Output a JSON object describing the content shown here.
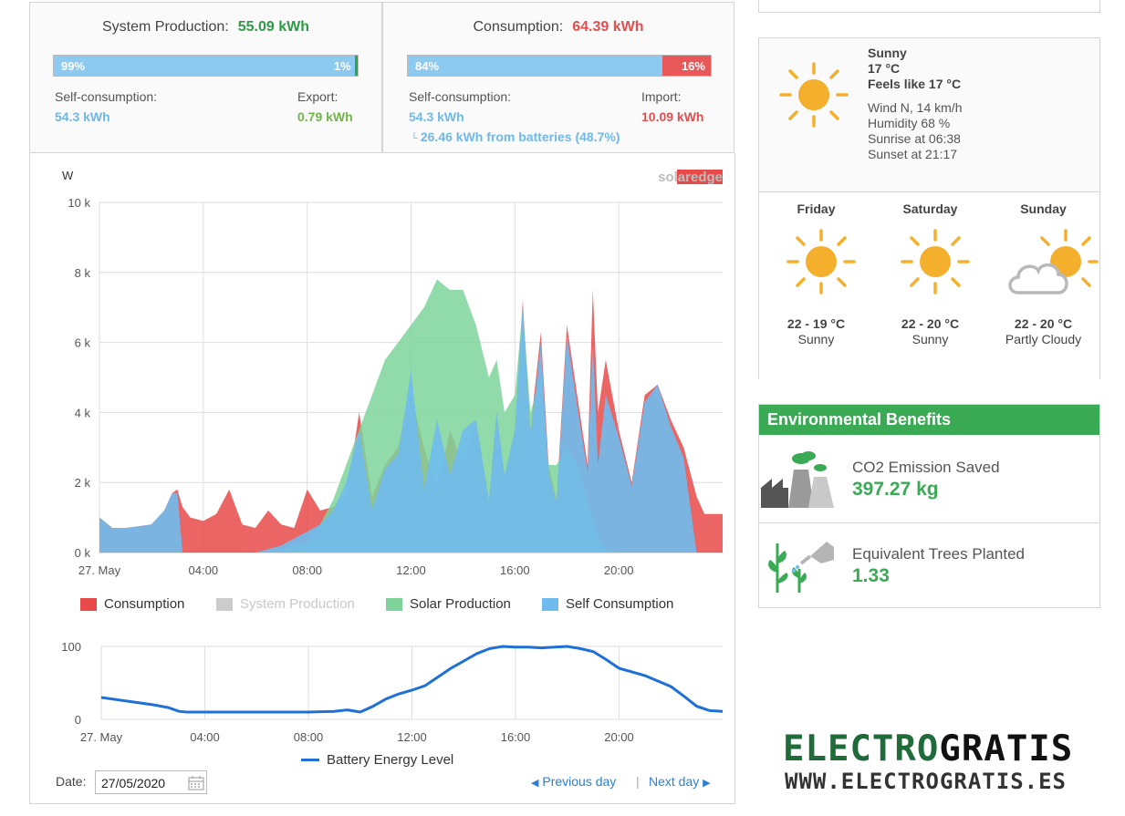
{
  "production": {
    "title": "System Production:",
    "total": "55.09 kWh",
    "self_pct_label": "99%",
    "export_pct_label": "1%",
    "self_fraction": 0.99,
    "self_label": "Self-consumption:",
    "self_value": "54.3 kWh",
    "export_label": "Export:",
    "export_value": "0.79 kWh"
  },
  "consumption": {
    "title": "Consumption:",
    "total": "64.39 kWh",
    "self_pct_label": "84%",
    "import_pct_label": "16%",
    "self_fraction": 0.84,
    "self_label": "Self-consumption:",
    "self_value": "54.3 kWh",
    "batteries_note": "26.46 kWh from batteries (48.7%)",
    "import_label": "Import:",
    "import_value": "10.09 kWh"
  },
  "colors": {
    "consumption": "#e84a4a",
    "system_production": "#cccccc",
    "solar_production": "#7ed39a",
    "self_consumption": "#6fbbee",
    "battery_line": "#1e6fd6",
    "env_green": "#3aaa55"
  },
  "chart_data": [
    {
      "type": "area",
      "ylabel": "W",
      "ylim": [
        0,
        10000
      ],
      "y_ticks": [
        "0 k",
        "2 k",
        "4 k",
        "6 k",
        "8 k",
        "10 k"
      ],
      "x_ticks": [
        "27. May",
        "04:00",
        "08:00",
        "12:00",
        "16:00",
        "20:00"
      ],
      "x_hours": [
        0,
        0.5,
        1,
        1.5,
        2,
        2.5,
        2.8,
        3,
        3.2,
        3.5,
        4,
        4.5,
        5,
        5.5,
        6,
        6.5,
        7,
        7.5,
        8,
        8.5,
        9,
        9.5,
        10,
        10.5,
        11,
        11.5,
        12,
        12.5,
        13,
        13.5,
        14,
        14.5,
        15,
        15.3,
        15.6,
        16,
        16.3,
        16.6,
        17,
        17.3,
        17.6,
        18,
        18.4,
        18.8,
        19,
        19.2,
        19.5,
        20,
        20.5,
        21,
        21.5,
        22,
        22.5,
        23,
        23.3,
        23.6,
        24
      ],
      "series": [
        {
          "name": "Consumption",
          "values": [
            1000,
            700,
            700,
            750,
            800,
            1200,
            1700,
            1800,
            1300,
            1000,
            900,
            1100,
            1800,
            800,
            700,
            1200,
            800,
            700,
            1800,
            1200,
            1300,
            1500,
            4000,
            1600,
            2500,
            3000,
            4500,
            3000,
            1800,
            3500,
            2500,
            3800,
            1500,
            4000,
            2200,
            3500,
            7200,
            3500,
            6300,
            2500,
            1500,
            6500,
            4500,
            2500,
            7500,
            4000,
            5500,
            3500,
            2000,
            4500,
            4800,
            3800,
            3000,
            1600,
            1100,
            1100,
            1100
          ]
        },
        {
          "name": "System Production",
          "visible": false,
          "values": []
        },
        {
          "name": "Solar Production",
          "values": [
            0,
            0,
            0,
            0,
            0,
            0,
            0,
            0,
            0,
            0,
            0,
            0,
            0,
            0,
            0,
            0,
            100,
            200,
            300,
            800,
            1500,
            2500,
            3500,
            4500,
            5500,
            6000,
            6500,
            7000,
            7800,
            7500,
            7500,
            6500,
            5000,
            5500,
            4000,
            4500,
            7000,
            4000,
            5000,
            2500,
            2500,
            3000,
            2500,
            1500,
            1000,
            500,
            100,
            0,
            0,
            0,
            0,
            0,
            0,
            0,
            0,
            0,
            0
          ]
        },
        {
          "name": "Self Consumption",
          "values": [
            1000,
            700,
            700,
            750,
            800,
            1200,
            1700,
            1700,
            0,
            0,
            0,
            0,
            0,
            0,
            0,
            100,
            200,
            400,
            600,
            800,
            1200,
            2000,
            3500,
            1200,
            2400,
            2800,
            5200,
            1800,
            3800,
            2200,
            3500,
            3800,
            1500,
            4000,
            2200,
            3500,
            7000,
            3300,
            6000,
            2300,
            1400,
            6200,
            4200,
            2300,
            6000,
            2500,
            4500,
            3300,
            1900,
            4300,
            4800,
            3600,
            2700,
            0,
            0,
            0,
            0
          ]
        }
      ]
    },
    {
      "type": "line",
      "ylim": [
        0,
        100
      ],
      "y_ticks": [
        "0",
        "100"
      ],
      "x_ticks": [
        "27. May",
        "04:00",
        "08:00",
        "12:00",
        "16:00",
        "20:00"
      ],
      "x_hours": [
        0,
        1,
        2,
        2.6,
        3,
        3.3,
        4,
        5,
        6,
        7,
        8,
        9,
        9.5,
        10,
        10.5,
        11,
        11.5,
        12,
        12.5,
        13,
        13.5,
        14,
        14.5,
        15,
        15.5,
        16,
        16.5,
        17,
        17.5,
        18,
        18.5,
        19,
        19.5,
        20,
        21,
        22,
        22.5,
        23,
        23.5,
        24
      ],
      "series": [
        {
          "name": "Battery Energy Level",
          "values": [
            30,
            25,
            20,
            16,
            11,
            10,
            10,
            10,
            10,
            10,
            10,
            11,
            13,
            10,
            18,
            28,
            35,
            40,
            46,
            58,
            70,
            80,
            90,
            97,
            100,
            99,
            99,
            98,
            99,
            100,
            97,
            93,
            82,
            70,
            60,
            45,
            32,
            18,
            12,
            11
          ]
        }
      ]
    }
  ],
  "legend": {
    "consumption": "Consumption",
    "system_production": "System Production",
    "solar_production": "Solar Production",
    "self_consumption": "Self Consumption",
    "battery": "Battery Energy Level"
  },
  "logo_text": "solaredge",
  "footer": {
    "date_label": "Date:",
    "date_value": "27/05/2020",
    "prev": "Previous day",
    "next": "Next day"
  },
  "weather": {
    "condition": "Sunny",
    "temp": "17 °C",
    "feels_like": "Feels like 17 °C",
    "wind": "Wind N, 14 km/h",
    "humidity": "Humidity 68 %",
    "sunrise": "Sunrise at 06:38",
    "sunset": "Sunset at 21:17",
    "forecast": [
      {
        "day": "Friday",
        "range": "22 - 19 °C",
        "desc": "Sunny",
        "icon": "sun-icon"
      },
      {
        "day": "Saturday",
        "range": "22 - 20 °C",
        "desc": "Sunny",
        "icon": "sun-icon"
      },
      {
        "day": "Sunday",
        "range": "22 - 20 °C",
        "desc": "Partly Cloudy",
        "icon": "partly-cloudy-icon"
      }
    ]
  },
  "environment": {
    "header": "Environmental Benefits",
    "co2_label": "CO2 Emission Saved",
    "co2_value": "397.27 kg",
    "trees_label": "Equivalent Trees Planted",
    "trees_value": "1.33"
  },
  "brand": {
    "name_part1": "ELECTRO",
    "name_part2": "GRATIS",
    "url": "WWW.ELECTROGRATIS.ES"
  }
}
